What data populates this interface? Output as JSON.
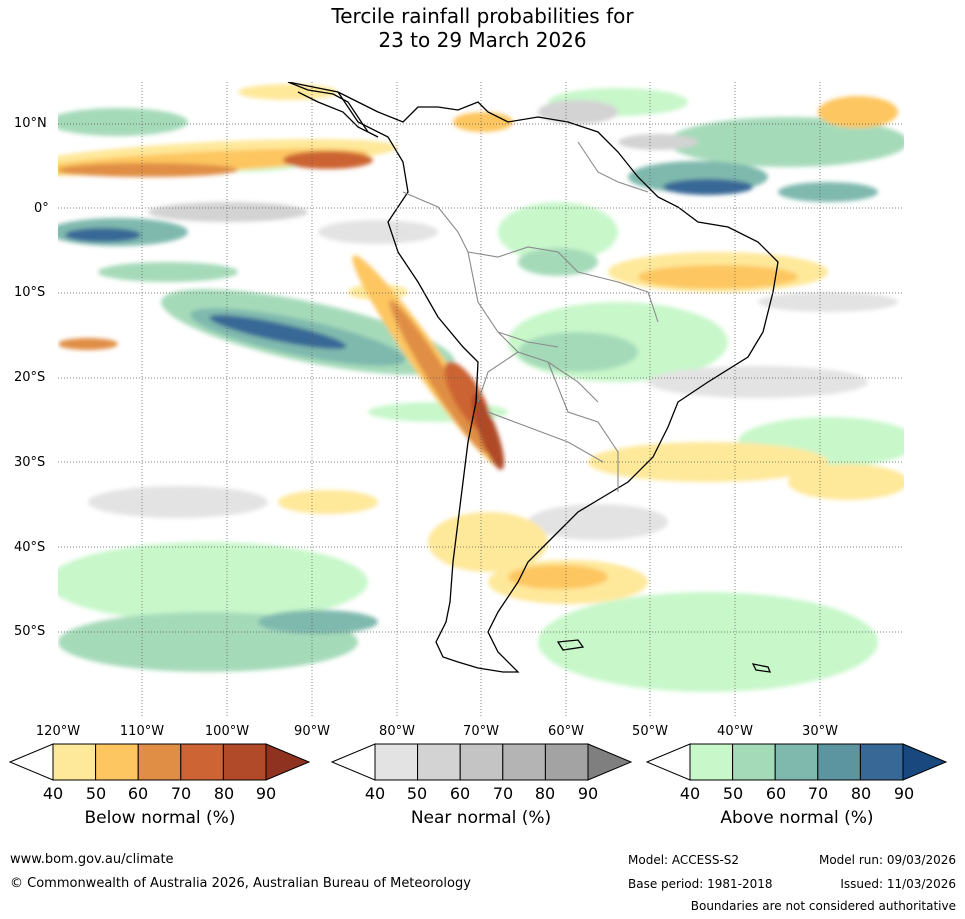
{
  "title": {
    "line1": "Tercile rainfall probabilities for",
    "line2": "23 to 29 March 2026"
  },
  "map": {
    "region": "South America",
    "lat_labels": [
      "10°N",
      "0°",
      "10°S",
      "20°S",
      "30°S",
      "40°S",
      "50°S"
    ],
    "lon_labels": [
      "120°W",
      "110°W",
      "100°W",
      "90°W",
      "80°W",
      "70°W",
      "60°W",
      "50°W",
      "40°W",
      "30°W"
    ],
    "colors": {
      "ocean_bg": "#ffffff",
      "land_stroke": "#000000",
      "border_stroke": "#8a8a8a",
      "grid": "#555555"
    }
  },
  "legend": {
    "ticks": [
      "40",
      "50",
      "60",
      "70",
      "80",
      "90"
    ],
    "below": {
      "title": "Below normal (%)",
      "colors": [
        "#ffffff",
        "#fee89a",
        "#fdc660",
        "#e08e45",
        "#cc6433",
        "#b04a28",
        "#8f3220"
      ]
    },
    "near": {
      "title": "Near normal (%)",
      "colors": [
        "#ffffff",
        "#e3e3e3",
        "#d3d3d3",
        "#c4c4c4",
        "#b4b4b4",
        "#a3a3a3",
        "#7f7f7f"
      ]
    },
    "above": {
      "title": "Above normal (%)",
      "colors": [
        "#ffffff",
        "#c8f7ca",
        "#a5dab9",
        "#7fb9ae",
        "#5c94a0",
        "#386896",
        "#18487e"
      ]
    }
  },
  "footer": {
    "website": "www.bom.gov.au/climate",
    "copyright": "© Commonwealth of Australia 2026, Australian Bureau of Meteorology",
    "model": "Model: ACCESS-S2",
    "model_run": "Model run: 09/03/2026",
    "base_period": "Base period: 1981-2018",
    "issued": "Issued: 11/03/2026",
    "disclaimer": "Boundaries are not considered authoritative"
  }
}
